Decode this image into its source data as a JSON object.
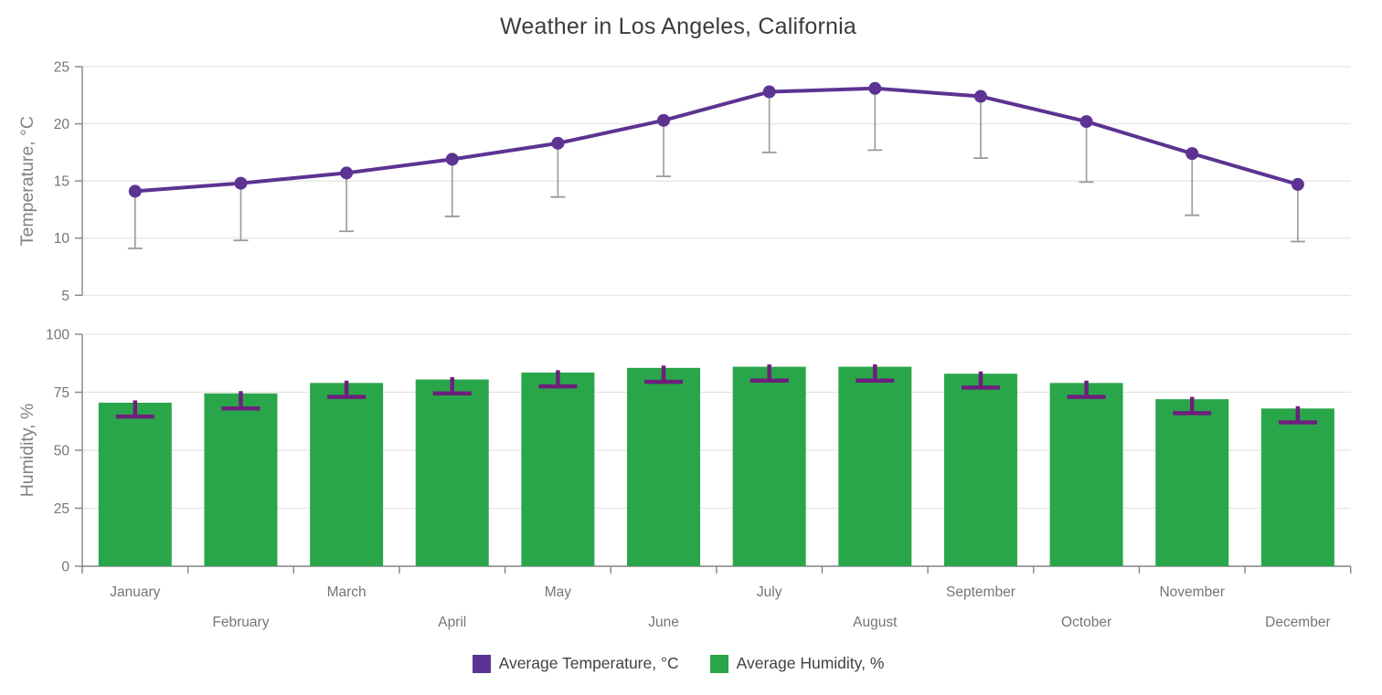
{
  "title": "Weather in Los Angeles, California",
  "chart_data": [
    {
      "type": "line",
      "title": "Weather in Los Angeles, California",
      "ylabel": "Temperature, °C",
      "ylim": [
        5,
        25
      ],
      "yticks": [
        5,
        10,
        15,
        20,
        25
      ],
      "grid": true,
      "legend_position": "bottom",
      "categories": [
        "January",
        "February",
        "March",
        "April",
        "May",
        "June",
        "July",
        "August",
        "September",
        "October",
        "November",
        "December"
      ],
      "series": [
        {
          "name": "Average Temperature, °C",
          "color": "#5c3392",
          "values": [
            14.1,
            14.8,
            15.7,
            16.9,
            18.3,
            20.3,
            22.8,
            23.1,
            22.4,
            20.2,
            17.4,
            14.7
          ],
          "error_low": [
            9.1,
            9.8,
            10.6,
            11.9,
            13.6,
            15.4,
            17.5,
            17.7,
            17.0,
            14.9,
            12.0,
            9.7
          ],
          "error_bar_color": "#9a9a9a"
        }
      ]
    },
    {
      "type": "bar",
      "title": "",
      "ylabel": "Humidity, %",
      "ylim": [
        0,
        100
      ],
      "yticks": [
        0,
        25,
        50,
        75,
        100
      ],
      "grid": true,
      "legend_position": "bottom",
      "categories": [
        "January",
        "February",
        "March",
        "April",
        "May",
        "June",
        "July",
        "August",
        "September",
        "October",
        "November",
        "December"
      ],
      "series": [
        {
          "name": "Average Humidity, %",
          "color": "#2aa64a",
          "values": [
            70.5,
            74.5,
            79,
            80.5,
            83.5,
            85.5,
            86,
            86,
            83,
            79,
            72,
            68
          ],
          "error_low": [
            64.5,
            68,
            73,
            74.5,
            77.5,
            79.5,
            80,
            80,
            77,
            73,
            66,
            62
          ],
          "error_high": [
            71.5,
            75.5,
            80,
            81.5,
            84.5,
            86.5,
            87,
            87,
            84,
            80,
            73,
            69
          ],
          "error_bar_color": "#6e1f7d"
        }
      ]
    }
  ],
  "legend": {
    "items": [
      {
        "label": "Average Temperature, °C",
        "color": "#5c3392"
      },
      {
        "label": "Average Humidity, %",
        "color": "#2aa64a"
      }
    ]
  },
  "colors": {
    "grid": "#e4e4e4",
    "axis": "#848484",
    "tick_label": "#757575",
    "axis_title": "#828282",
    "title_text": "#383c40",
    "legend_text": "#3f4246"
  }
}
